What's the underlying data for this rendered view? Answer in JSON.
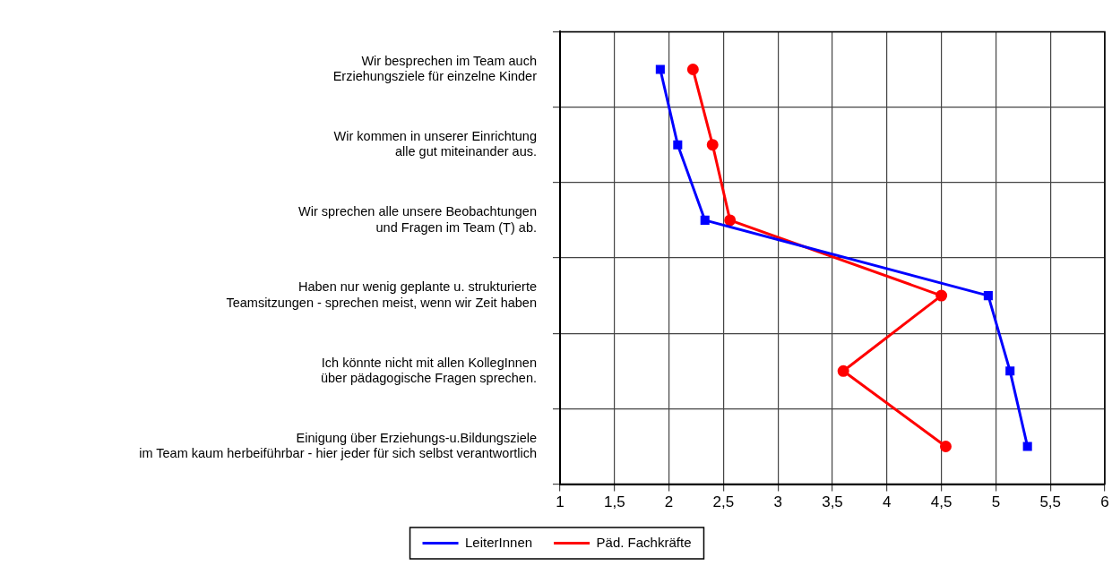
{
  "chart_data": {
    "type": "line",
    "orientation": "horizontal",
    "categories": [
      "Wir besprechen im Team auch\nErziehungsziele für einzelne Kinder",
      "Wir kommen in unserer Einrichtung\nalle gut miteinander aus.",
      "Wir sprechen alle unsere Beobachtungen\nund Fragen im Team (T) ab.",
      "Haben nur wenig geplante u. strukturierte\nTeamsitzungen - sprechen meist, wenn wir Zeit haben",
      "Ich könnte nicht mit allen KollegInnen\nüber pädagogische Fragen sprechen.",
      "Einigung über Erziehungs-u.Bildungsziele\nim Team kaum herbeiführbar - hier jeder für sich selbst verantwortlich"
    ],
    "series": [
      {
        "name": "LeiterInnen",
        "color": "#0000ff",
        "marker": "square",
        "values": [
          1.92,
          2.08,
          2.33,
          4.93,
          5.13,
          5.29
        ]
      },
      {
        "name": "Päd. Fachkräfte",
        "color": "#ff0000",
        "marker": "circle",
        "values": [
          2.22,
          2.4,
          2.56,
          4.5,
          3.6,
          4.54
        ]
      }
    ],
    "xlim": [
      1,
      6
    ],
    "xticks": [
      1,
      {
        "value": 1.5,
        "label": "1,5"
      },
      2,
      {
        "value": 2.5,
        "label": "2,5"
      },
      3,
      {
        "value": 3.5,
        "label": "3,5"
      },
      4,
      {
        "value": 4.5,
        "label": "4,5"
      },
      5,
      {
        "value": 5.5,
        "label": "5,5"
      },
      6
    ],
    "grid": true,
    "legend": "bottom",
    "line_style": "solid"
  }
}
